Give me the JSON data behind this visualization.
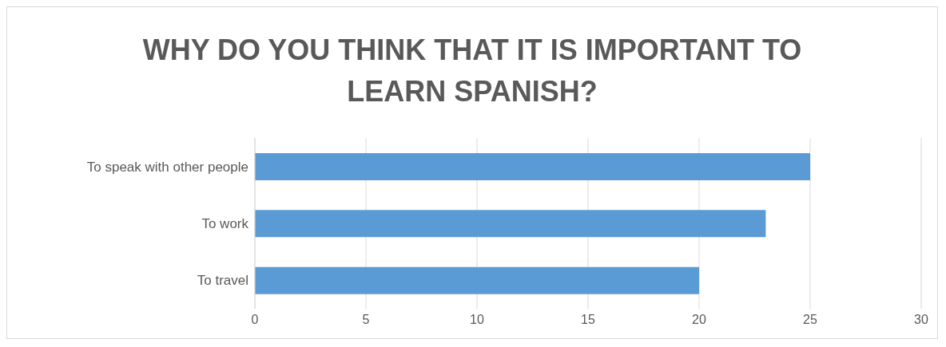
{
  "chart_data": {
    "type": "bar",
    "orientation": "horizontal",
    "title": "WHY DO YOU THINK THAT IT IS IMPORTANT TO LEARN SPANISH?",
    "categories": [
      "To speak with other people",
      "To work",
      "To travel"
    ],
    "values": [
      25,
      23,
      20
    ],
    "color": "#5b9bd5",
    "xlim": [
      0,
      30
    ],
    "xticks": [
      0,
      5,
      10,
      15,
      20,
      25,
      30
    ],
    "grid": "x"
  }
}
